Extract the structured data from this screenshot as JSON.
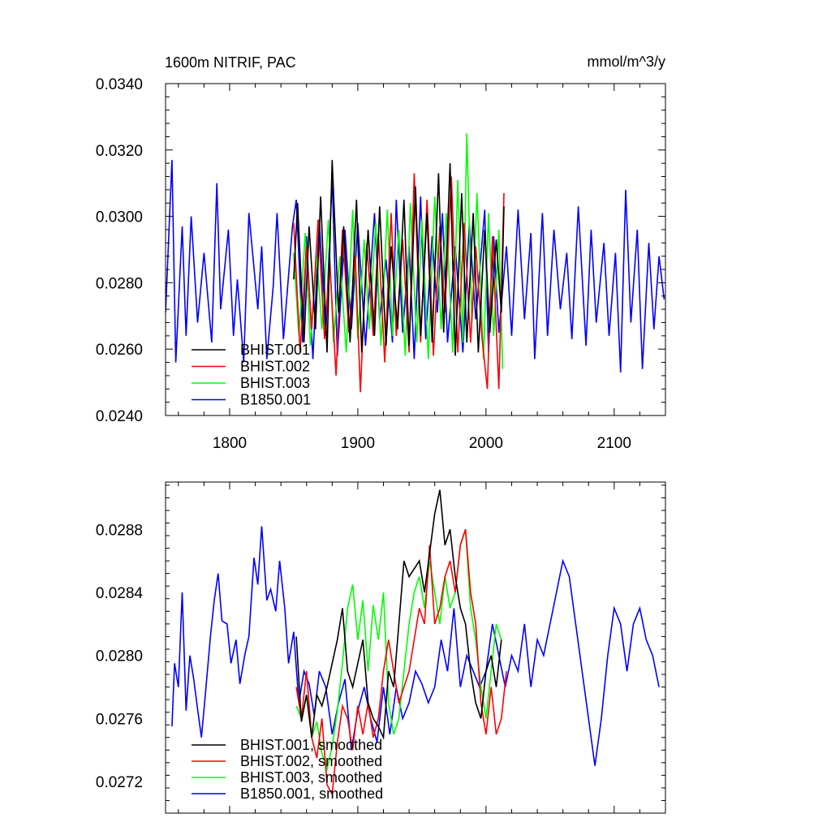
{
  "chart_data": [
    {
      "type": "line",
      "title": "1600m NITRIF, PAC",
      "units": "mmol/m^3/y",
      "xlim": [
        1750,
        2140
      ],
      "ylim": [
        0.024,
        0.034
      ],
      "xticks": [
        1800,
        1900,
        2000,
        2100
      ],
      "xtick_labels": [
        "1800",
        "1900",
        "2000",
        "2100"
      ],
      "yticks": [
        0.024,
        0.026,
        0.028,
        0.03,
        0.032,
        0.034
      ],
      "ytick_labels": [
        "0.0240",
        "0.0260",
        "0.0280",
        "0.0300",
        "0.0320",
        "0.0340"
      ],
      "legend_position": "bottom-left",
      "series": [
        {
          "name": "B1850.001",
          "color": "#0000ff",
          "x_start": 1750,
          "x": [
            1750,
            1755,
            1758,
            1763,
            1766,
            1770,
            1775,
            1780,
            1786,
            1790,
            1793,
            1799,
            1803,
            1806,
            1811,
            1815,
            1822,
            1825,
            1829,
            1834,
            1837,
            1842,
            1849,
            1852,
            1857,
            1860,
            1865,
            1870,
            1875,
            1880,
            1884,
            1890,
            1895,
            1900,
            1906,
            1913,
            1917,
            1922,
            1927,
            1930,
            1935,
            1940,
            1944,
            1949,
            1953,
            1958,
            1962,
            1966,
            1970,
            1976,
            1982,
            1987,
            1992,
            1999,
            2002,
            2006,
            2010,
            2016,
            2020,
            2025,
            2030,
            2035,
            2038,
            2044,
            2048,
            2053,
            2058,
            2063,
            2067,
            2072,
            2078,
            2082,
            2086,
            2092,
            2096,
            2101,
            2105,
            2109,
            2113,
            2118,
            2122,
            2127,
            2131,
            2135,
            2139
          ],
          "values": [
            0.0271,
            0.0317,
            0.0256,
            0.0297,
            0.0264,
            0.03,
            0.0268,
            0.0289,
            0.0262,
            0.031,
            0.0272,
            0.0296,
            0.0264,
            0.0281,
            0.0256,
            0.0301,
            0.0272,
            0.0291,
            0.0257,
            0.0279,
            0.0301,
            0.0263,
            0.0297,
            0.0305,
            0.0262,
            0.0294,
            0.0257,
            0.0299,
            0.0264,
            0.0312,
            0.0258,
            0.0296,
            0.0266,
            0.0298,
            0.0261,
            0.0301,
            0.0269,
            0.0287,
            0.0262,
            0.0305,
            0.0265,
            0.0291,
            0.0257,
            0.0306,
            0.0263,
            0.0294,
            0.0271,
            0.0301,
            0.0262,
            0.0291,
            0.0259,
            0.0298,
            0.0269,
            0.0302,
            0.0259,
            0.0294,
            0.0265,
            0.0291,
            0.0264,
            0.0302,
            0.0269,
            0.0295,
            0.0257,
            0.0301,
            0.0264,
            0.0296,
            0.0272,
            0.0289,
            0.0263,
            0.0303,
            0.0261,
            0.0296,
            0.0268,
            0.0292,
            0.0264,
            0.0289,
            0.0253,
            0.0308,
            0.0268,
            0.0296,
            0.0254,
            0.0292,
            0.0266,
            0.0288,
            0.0275
          ]
        },
        {
          "name": "BHIST.003",
          "color": "#00ff00",
          "x": [
            1850,
            1854,
            1859,
            1863,
            1868,
            1872,
            1877,
            1881,
            1886,
            1891,
            1896,
            1900,
            1905,
            1909,
            1914,
            1918,
            1923,
            1927,
            1932,
            1937,
            1941,
            1946,
            1950,
            1955,
            1960,
            1965,
            1969,
            1974,
            1978,
            1982,
            1985,
            1989,
            1993,
            1998,
            2002,
            2006,
            2010,
            2013
          ],
          "values": [
            0.0289,
            0.0264,
            0.0295,
            0.0261,
            0.0288,
            0.0266,
            0.0299,
            0.0262,
            0.0288,
            0.0259,
            0.0302,
            0.0263,
            0.0293,
            0.0266,
            0.0298,
            0.0261,
            0.0302,
            0.0264,
            0.0296,
            0.0258,
            0.0304,
            0.0262,
            0.0299,
            0.0257,
            0.0306,
            0.0266,
            0.0301,
            0.0259,
            0.0311,
            0.0262,
            0.0325,
            0.0268,
            0.0307,
            0.0257,
            0.0301,
            0.0264,
            0.0296,
            0.0254
          ]
        },
        {
          "name": "BHIST.002",
          "color": "#ff0000",
          "x": [
            1850,
            1855,
            1860,
            1864,
            1869,
            1874,
            1878,
            1883,
            1888,
            1893,
            1898,
            1902,
            1907,
            1912,
            1916,
            1921,
            1926,
            1930,
            1935,
            1940,
            1944,
            1949,
            1954,
            1959,
            1964,
            1968,
            1973,
            1978,
            1983,
            1988,
            1992,
            1997,
            2001,
            2005,
            2010,
            2014
          ],
          "values": [
            0.0298,
            0.0259,
            0.0291,
            0.0266,
            0.0299,
            0.0263,
            0.0287,
            0.0252,
            0.0296,
            0.0265,
            0.0288,
            0.0247,
            0.0292,
            0.0264,
            0.0295,
            0.0256,
            0.0301,
            0.0264,
            0.0293,
            0.0259,
            0.0313,
            0.0262,
            0.0305,
            0.0258,
            0.0297,
            0.0271,
            0.0312,
            0.0259,
            0.0298,
            0.0262,
            0.0291,
            0.0263,
            0.0248,
            0.0294,
            0.0248,
            0.0307
          ]
        },
        {
          "name": "BHIST.001",
          "color": "#000000",
          "x": [
            1850,
            1853,
            1858,
            1862,
            1867,
            1871,
            1876,
            1880,
            1885,
            1889,
            1894,
            1899,
            1903,
            1908,
            1913,
            1917,
            1922,
            1926,
            1931,
            1936,
            1940,
            1945,
            1949,
            1954,
            1958,
            1963,
            1967,
            1972,
            1976,
            1981,
            1985,
            1990,
            1994,
            1999,
            2003,
            2008,
            2012,
            2014
          ],
          "values": [
            0.0281,
            0.0304,
            0.0262,
            0.0297,
            0.0266,
            0.0306,
            0.0259,
            0.0317,
            0.0271,
            0.0297,
            0.0262,
            0.0305,
            0.0259,
            0.0296,
            0.0264,
            0.0303,
            0.0261,
            0.0291,
            0.0266,
            0.0305,
            0.0261,
            0.0309,
            0.0264,
            0.0301,
            0.0262,
            0.0313,
            0.0265,
            0.0316,
            0.0258,
            0.0307,
            0.0262,
            0.0301,
            0.0259,
            0.0296,
            0.0265,
            0.0293,
            0.0271,
            0.0303
          ]
        }
      ],
      "legend": [
        "BHIST.001",
        "BHIST.002",
        "BHIST.003",
        "B1850.001"
      ]
    },
    {
      "type": "line",
      "xlim": [
        1750,
        2140
      ],
      "ylim": [
        0.027,
        0.0291
      ],
      "xticks": [
        1800,
        1900,
        2000,
        2100
      ],
      "yticks": [
        0.0272,
        0.0276,
        0.028,
        0.0284,
        0.0288
      ],
      "ytick_labels": [
        "0.0272",
        "0.0276",
        "0.0280",
        "0.0284",
        "0.0288"
      ],
      "legend_position": "bottom-left",
      "series": [
        {
          "name": "B1850.001, smoothed",
          "color": "#0000ff",
          "x": [
            1755,
            1757,
            1760,
            1763,
            1766,
            1769,
            1772,
            1775,
            1778,
            1781,
            1785,
            1788,
            1791,
            1794,
            1798,
            1801,
            1805,
            1808,
            1812,
            1815,
            1819,
            1822,
            1825,
            1829,
            1832,
            1836,
            1839,
            1843,
            1846,
            1850,
            1854,
            1858,
            1862,
            1866,
            1870,
            1875,
            1880,
            1885,
            1890,
            1895,
            1900,
            1905,
            1910,
            1915,
            1920,
            1925,
            1930,
            1935,
            1940,
            1945,
            1950,
            1955,
            1960,
            1965,
            1970,
            1975,
            1980,
            1985,
            1990,
            1995,
            2000,
            2005,
            2010,
            2015,
            2020,
            2025,
            2030,
            2035,
            2040,
            2045,
            2050,
            2055,
            2060,
            2065,
            2070,
            2075,
            2080,
            2085,
            2090,
            2095,
            2100,
            2105,
            2110,
            2115,
            2120,
            2125,
            2130,
            2135
          ],
          "values": [
            0.02755,
            0.02795,
            0.0278,
            0.0284,
            0.02765,
            0.028,
            0.02785,
            0.02766,
            0.02748,
            0.02775,
            0.02812,
            0.02835,
            0.02852,
            0.02822,
            0.0282,
            0.02795,
            0.0281,
            0.02782,
            0.02801,
            0.02812,
            0.02862,
            0.02845,
            0.02882,
            0.02835,
            0.02842,
            0.02828,
            0.0286,
            0.0283,
            0.02795,
            0.02815,
            0.0277,
            0.0279,
            0.02782,
            0.02762,
            0.0279,
            0.0278,
            0.0275,
            0.0277,
            0.02785,
            0.0274,
            0.02765,
            0.0278,
            0.0276,
            0.02745,
            0.0278,
            0.0275,
            0.0278,
            0.0276,
            0.0277,
            0.0279,
            0.02782,
            0.0277,
            0.0278,
            0.0281,
            0.0279,
            0.0283,
            0.0278,
            0.028,
            0.0279,
            0.0278,
            0.0279,
            0.0282,
            0.028,
            0.0278,
            0.028,
            0.0279,
            0.0282,
            0.0278,
            0.0281,
            0.028,
            0.0282,
            0.0284,
            0.0286,
            0.0285,
            0.0282,
            0.0279,
            0.0276,
            0.0273,
            0.0276,
            0.028,
            0.0283,
            0.0282,
            0.0279,
            0.0282,
            0.0283,
            0.0281,
            0.028,
            0.0278
          ]
        },
        {
          "name": "BHIST.003, smoothed",
          "color": "#00ff00",
          "x": [
            1852,
            1856,
            1860,
            1864,
            1868,
            1872,
            1876,
            1880,
            1884,
            1888,
            1892,
            1896,
            1900,
            1904,
            1908,
            1912,
            1916,
            1920,
            1924,
            1928,
            1932,
            1936,
            1940,
            1944,
            1948,
            1952,
            1956,
            1960,
            1964,
            1968,
            1972,
            1976,
            1980,
            1984,
            1988,
            1992,
            1996,
            2000,
            2004,
            2008,
            2012
          ],
          "values": [
            0.02768,
            0.0276,
            0.02775,
            0.02748,
            0.02758,
            0.02738,
            0.02728,
            0.02742,
            0.02765,
            0.02795,
            0.0283,
            0.02845,
            0.0281,
            0.02835,
            0.0279,
            0.02832,
            0.0281,
            0.0284,
            0.0277,
            0.0275,
            0.0276,
            0.0279,
            0.0282,
            0.0284,
            0.0285,
            0.0283,
            0.0286,
            0.0284,
            0.0282,
            0.0285,
            0.0283,
            0.0284,
            0.0287,
            0.0288,
            0.0283,
            0.0281,
            0.0278,
            0.0276,
            0.0279,
            0.0282,
            0.0281
          ]
        },
        {
          "name": "BHIST.002, smoothed",
          "color": "#ff0000",
          "x": [
            1852,
            1856,
            1860,
            1864,
            1868,
            1872,
            1876,
            1880,
            1884,
            1888,
            1892,
            1896,
            1900,
            1904,
            1908,
            1912,
            1916,
            1920,
            1924,
            1928,
            1932,
            1936,
            1940,
            1944,
            1948,
            1952,
            1956,
            1960,
            1964,
            1968,
            1972,
            1976,
            1980,
            1984,
            1988,
            1992,
            1996,
            2000,
            2004,
            2008,
            2012,
            2016
          ],
          "values": [
            0.0278,
            0.0276,
            0.0279,
            0.02748,
            0.02735,
            0.0276,
            0.02718,
            0.02712,
            0.02745,
            0.02768,
            0.0276,
            0.0274,
            0.02768,
            0.0275,
            0.0277,
            0.02748,
            0.0276,
            0.0279,
            0.0281,
            0.0279,
            0.0277,
            0.0278,
            0.0279,
            0.0281,
            0.0283,
            0.0282,
            0.0287,
            0.0282,
            0.0283,
            0.0285,
            0.0286,
            0.0284,
            0.0287,
            0.0288,
            0.0284,
            0.0282,
            0.0277,
            0.0275,
            0.0278,
            0.0275,
            0.0276,
            0.0279
          ]
        },
        {
          "name": "BHIST.001, smoothed",
          "color": "#000000",
          "x": [
            1852,
            1856,
            1860,
            1864,
            1868,
            1872,
            1876,
            1880,
            1884,
            1888,
            1892,
            1896,
            1900,
            1904,
            1908,
            1912,
            1916,
            1920,
            1924,
            1928,
            1932,
            1936,
            1940,
            1944,
            1948,
            1952,
            1956,
            1960,
            1964,
            1968,
            1972,
            1976,
            1980,
            1984,
            1988,
            1992,
            1996,
            2000,
            2004,
            2008,
            2012
          ],
          "values": [
            0.02812,
            0.02758,
            0.02775,
            0.02748,
            0.02775,
            0.02768,
            0.0278,
            0.02795,
            0.0281,
            0.0283,
            0.0279,
            0.0278,
            0.02795,
            0.0281,
            0.0277,
            0.0276,
            0.02755,
            0.02748,
            0.0279,
            0.0278,
            0.0282,
            0.0286,
            0.0285,
            0.02855,
            0.0286,
            0.0284,
            0.02865,
            0.0289,
            0.02905,
            0.0287,
            0.0288,
            0.0285,
            0.0283,
            0.0282,
            0.0279,
            0.0277,
            0.0276,
            0.0279,
            0.028,
            0.0278,
            0.0281
          ]
        }
      ],
      "legend": [
        "BHIST.001, smoothed",
        "BHIST.002, smoothed",
        "BHIST.003, smoothed",
        "B1850.001, smoothed"
      ]
    }
  ]
}
